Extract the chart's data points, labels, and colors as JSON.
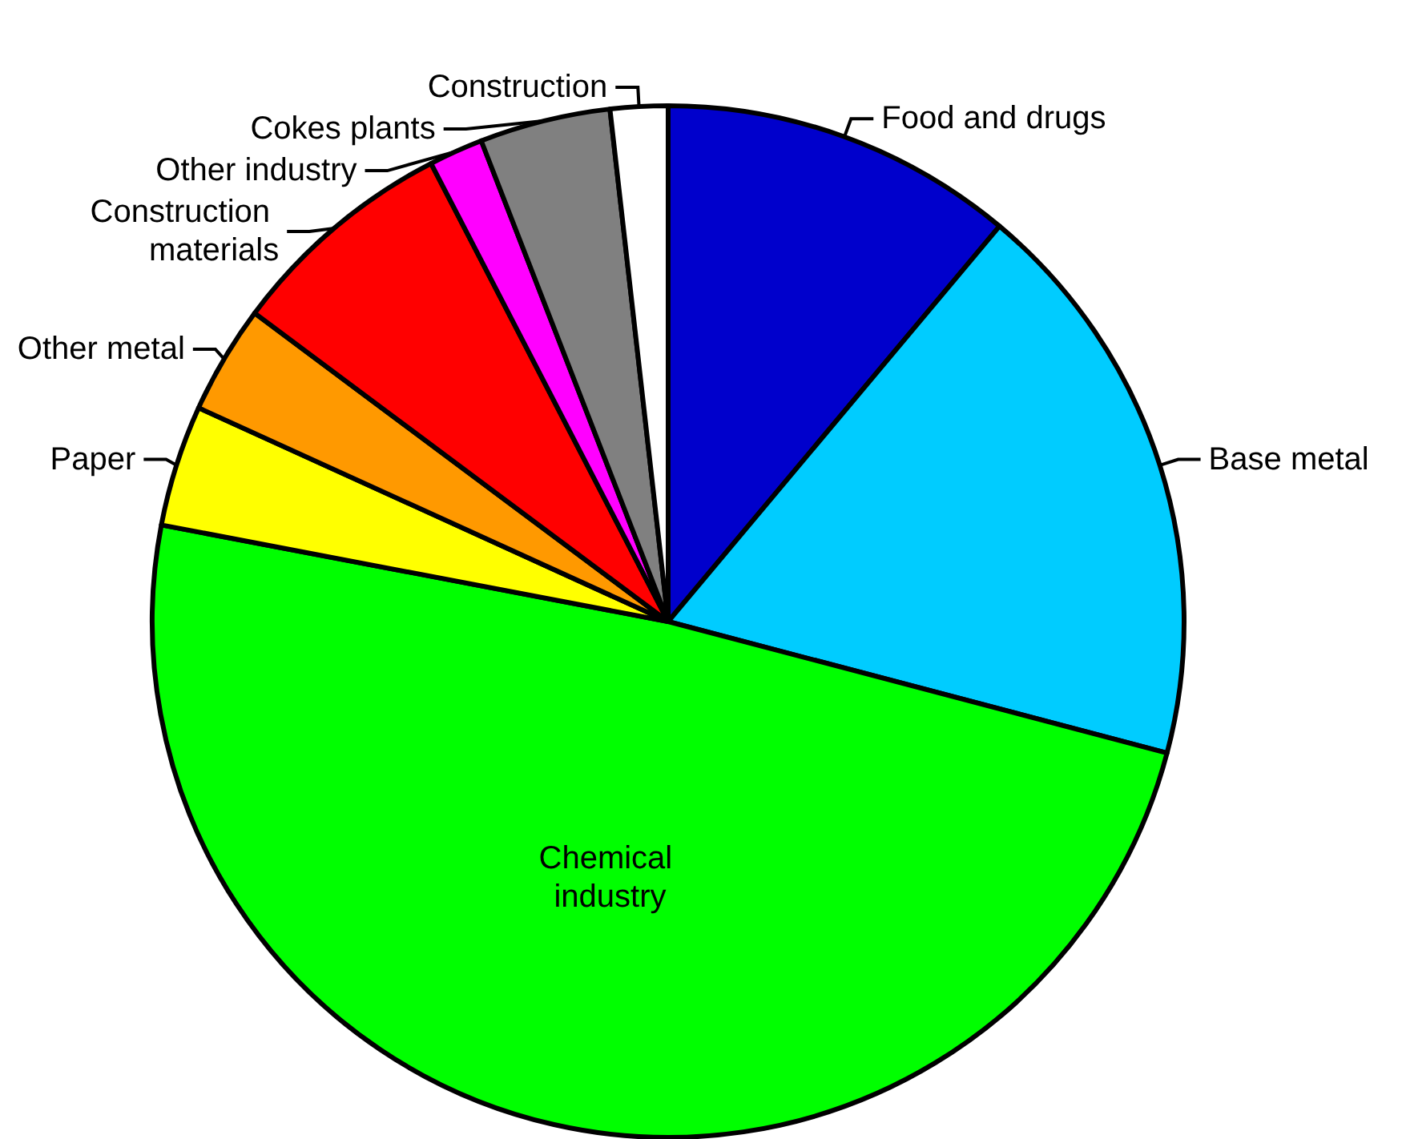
{
  "chart_data": {
    "type": "pie",
    "categories": [
      "Food and drugs",
      "Base metal",
      "Chemical industry",
      "Paper",
      "Other metal",
      "Construction materials",
      "Other industry",
      "Cokes plants",
      "Construction"
    ],
    "values": [
      11.1,
      18.0,
      48.9,
      3.8,
      3.4,
      7.2,
      1.7,
      4.1,
      1.8
    ],
    "colors": [
      "#0000cc",
      "#00ccff",
      "#00ff00",
      "#ffff00",
      "#ff9900",
      "#ff0000",
      "#ff00ff",
      "#808080",
      "#ffffff"
    ],
    "legend": false
  }
}
